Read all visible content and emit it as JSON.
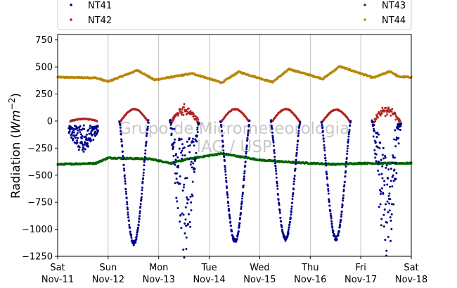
{
  "chart_data": {
    "type": "scatter",
    "ylabel": "Radiation (Wm^-2)",
    "ylabel_prefix": "Radiation (",
    "ylabel_w": "W",
    "ylabel_m": "m",
    "ylabel_exp": "−2",
    "ylabel_suffix": ")",
    "ylim": [
      -1250,
      800
    ],
    "yticks": [
      -1250,
      -1000,
      -750,
      -500,
      -250,
      0,
      250,
      500,
      750
    ],
    "ytick_labels": [
      "−1250",
      "−1000",
      "−750",
      "−500",
      "−250",
      "0",
      "250",
      "500",
      "750"
    ],
    "x_range": [
      "2017-11-11",
      "2017-11-18"
    ],
    "xtick_labels": [
      {
        "day": "Sat",
        "date": "Nov-11"
      },
      {
        "day": "Sun",
        "date": "Nov-12"
      },
      {
        "day": "Mon",
        "date": "Nov-13"
      },
      {
        "day": "Tue",
        "date": "Nov-14"
      },
      {
        "day": "Wed",
        "date": "Nov-15"
      },
      {
        "day": "Thu",
        "date": "Nov-16"
      },
      {
        "day": "Fri",
        "date": "Nov-17"
      },
      {
        "day": "Sat",
        "date": "Nov-18"
      }
    ],
    "grid": "vertical",
    "legend_placement": "top",
    "watermark": [
      "Grupo de Micrometeorologia",
      "IAG / USP"
    ],
    "series": [
      {
        "name": "NT41",
        "color": "#00008b",
        "baseline": 0,
        "day_minima": [
          -230,
          -1130,
          -1200,
          -1110,
          -1090,
          -1090,
          -1210
        ],
        "day_shape": [
          "cloudy",
          "clear",
          "cloudy",
          "clear",
          "clear",
          "clear",
          "cloudy"
        ]
      },
      {
        "name": "NT42",
        "color": "#b22222",
        "baseline": 0,
        "day_peaks": [
          20,
          110,
          125,
          110,
          110,
          105,
          110
        ]
      },
      {
        "name": "NT43",
        "color": "#006400",
        "key_values": [
          {
            "x": "2017-11-11 00:00",
            "y": -400
          },
          {
            "x": "2017-11-11 18:00",
            "y": -390
          },
          {
            "x": "2017-11-12 00:00",
            "y": -340
          },
          {
            "x": "2017-11-12 20:00",
            "y": -350
          },
          {
            "x": "2017-11-13 06:00",
            "y": -390
          },
          {
            "x": "2017-11-13 14:00",
            "y": -350
          },
          {
            "x": "2017-11-14 06:00",
            "y": -300
          },
          {
            "x": "2017-11-15 00:00",
            "y": -360
          },
          {
            "x": "2017-11-15 14:00",
            "y": -380
          },
          {
            "x": "2017-11-16 12:00",
            "y": -400
          },
          {
            "x": "2017-11-17 00:00",
            "y": -390
          },
          {
            "x": "2017-11-18 00:00",
            "y": -390
          }
        ]
      },
      {
        "name": "NT44",
        "color": "#b8860b",
        "key_values": [
          {
            "x": "2017-11-11 00:00",
            "y": 405
          },
          {
            "x": "2017-11-11 18:00",
            "y": 400
          },
          {
            "x": "2017-11-12 00:00",
            "y": 365
          },
          {
            "x": "2017-11-12 14:00",
            "y": 470
          },
          {
            "x": "2017-11-12 22:00",
            "y": 380
          },
          {
            "x": "2017-11-13 16:00",
            "y": 440
          },
          {
            "x": "2017-11-14 06:00",
            "y": 355
          },
          {
            "x": "2017-11-14 14:00",
            "y": 455
          },
          {
            "x": "2017-11-15 06:00",
            "y": 360
          },
          {
            "x": "2017-11-15 14:00",
            "y": 480
          },
          {
            "x": "2017-11-16 06:00",
            "y": 390
          },
          {
            "x": "2017-11-16 14:00",
            "y": 505
          },
          {
            "x": "2017-11-17 06:00",
            "y": 400
          },
          {
            "x": "2017-11-17 14:00",
            "y": 460
          },
          {
            "x": "2017-11-17 18:00",
            "y": 410
          },
          {
            "x": "2017-11-18 00:00",
            "y": 405
          }
        ]
      }
    ]
  }
}
